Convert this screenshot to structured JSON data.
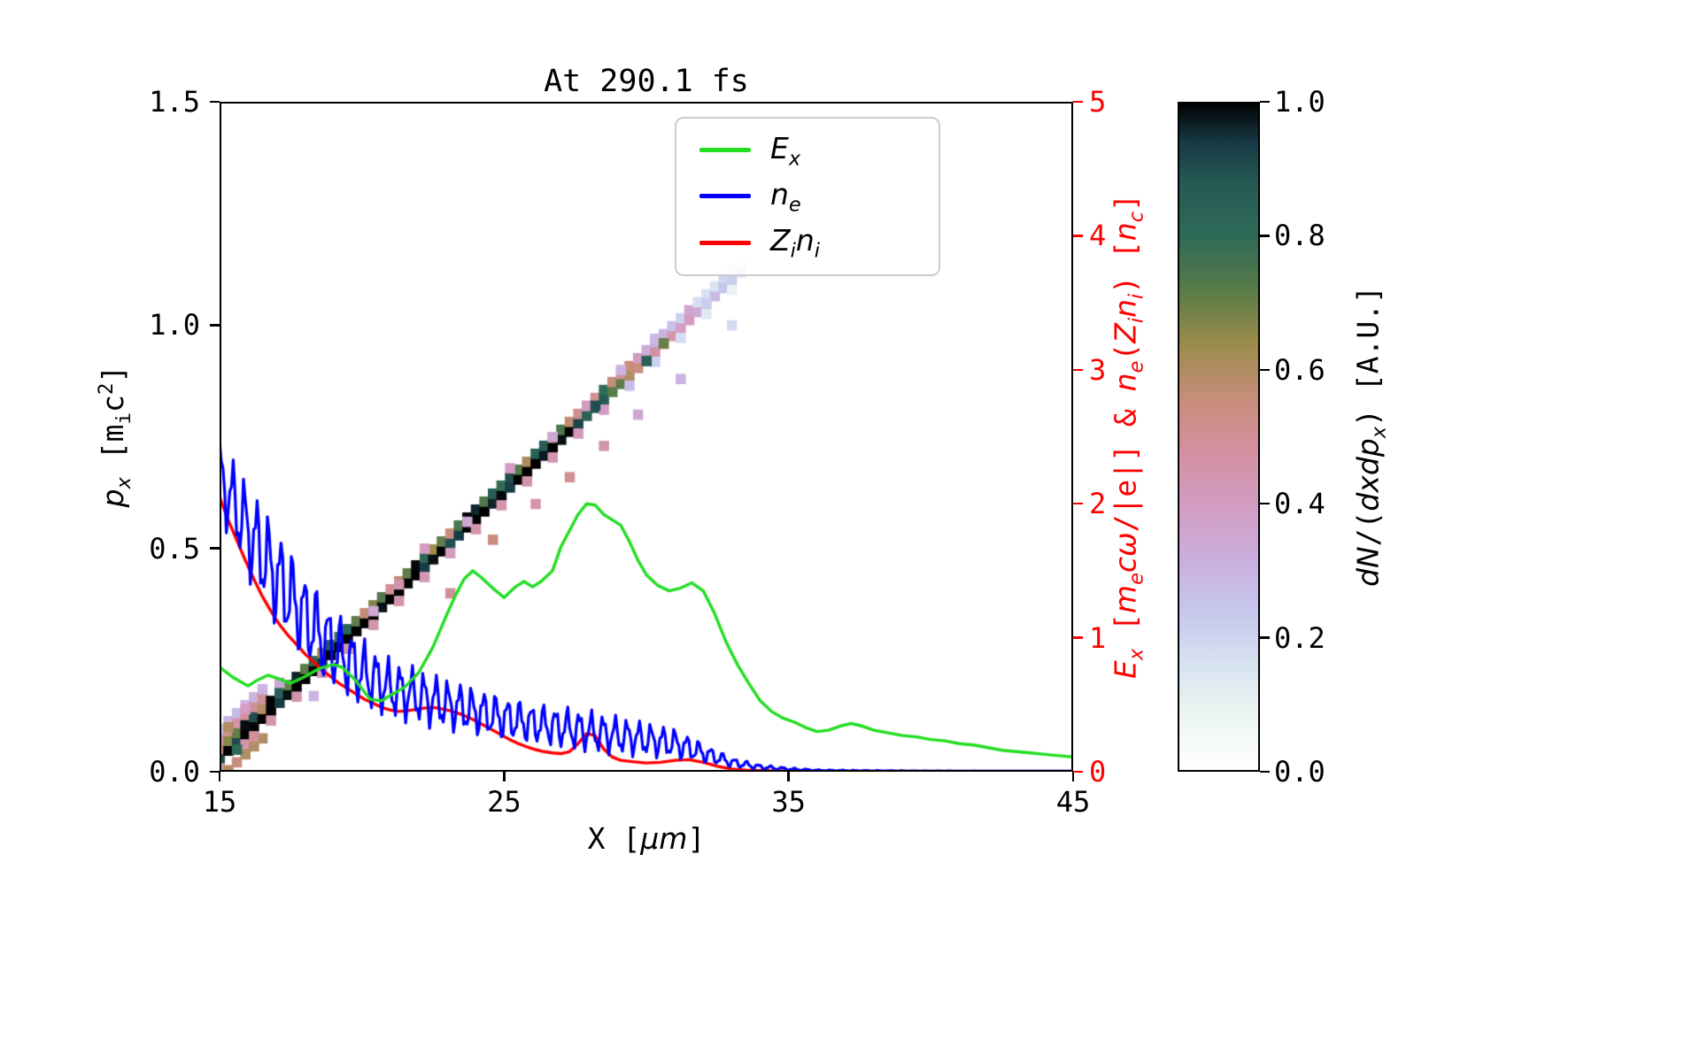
{
  "figure": {
    "title": "At 290.1 fs",
    "background": "#ffffff"
  },
  "axes": {
    "xlabel": "X [μm]",
    "ylabel_left": "p_x [m_i c²]",
    "ylabel_right": "E_x [m_e cω/|e|] & n_e(Z_i n_i) [n_c]",
    "colorbar_label": "dN/(dxdp_x) [A.U.]",
    "right_axis_color": "#ff0000",
    "xlabel_parts": [
      {
        "t": "X ["
      },
      {
        "t": "μm",
        "c": "it"
      },
      {
        "t": "]"
      }
    ],
    "ylabel_left_parts": [
      {
        "t": "p",
        "c": "it"
      },
      {
        "t": "x",
        "c": "it sub"
      },
      {
        "t": " [m"
      },
      {
        "t": "i",
        "c": "sub"
      },
      {
        "t": "c"
      },
      {
        "t": "2",
        "c": "sup"
      },
      {
        "t": "]"
      }
    ],
    "ylabel_right_parts": [
      {
        "t": "E",
        "c": "it"
      },
      {
        "t": "x",
        "c": "it sub"
      },
      {
        "t": " ["
      },
      {
        "t": "m",
        "c": "it"
      },
      {
        "t": "e",
        "c": "it sub"
      },
      {
        "t": "cω",
        "c": "it"
      },
      {
        "t": "/|e|] & "
      },
      {
        "t": "n",
        "c": "it"
      },
      {
        "t": "e",
        "c": "it sub"
      },
      {
        "t": "("
      },
      {
        "t": "Z",
        "c": "it"
      },
      {
        "t": "i",
        "c": "it sub"
      },
      {
        "t": "n",
        "c": "it"
      },
      {
        "t": "i",
        "c": "it sub"
      },
      {
        "t": ") ["
      },
      {
        "t": "n",
        "c": "it"
      },
      {
        "t": "c",
        "c": "it sub"
      },
      {
        "t": "]"
      }
    ],
    "colorbar_label_parts": [
      {
        "t": "dN",
        "c": "it"
      },
      {
        "t": "/("
      },
      {
        "t": "dxdp",
        "c": "it"
      },
      {
        "t": "x",
        "c": "it sub"
      },
      {
        "t": ") [A.U.]"
      }
    ]
  },
  "legend": {
    "items": [
      {
        "name": "Ex",
        "label": "E_x",
        "color": "#22dd22",
        "label_parts": [
          {
            "t": "E",
            "c": "it"
          },
          {
            "t": "x",
            "c": "it sub"
          }
        ]
      },
      {
        "name": "ne",
        "label": "n_e",
        "color": "#0000ff",
        "label_parts": [
          {
            "t": "n",
            "c": "it"
          },
          {
            "t": "e",
            "c": "it sub"
          }
        ]
      },
      {
        "name": "Zini",
        "label": "Z_i n_i",
        "color": "#ff0000",
        "label_parts": [
          {
            "t": "Z",
            "c": "it"
          },
          {
            "t": "i",
            "c": "it sub"
          },
          {
            "t": "n",
            "c": "it"
          },
          {
            "t": "i",
            "c": "it sub"
          }
        ]
      }
    ]
  },
  "chart_data": {
    "type": "heatmap+line",
    "title": "At 290.1 fs",
    "xlabel": "X [μm]",
    "ylabel_left": "p_x [m_i c²]",
    "ylabel_right": "E_x [m_e cω/|e|] & n_e(Z_i n_i) [n_c]",
    "x_range": [
      15,
      45
    ],
    "y_left_range": [
      0,
      1.5
    ],
    "y_right_range": [
      0,
      5
    ],
    "grid": false,
    "legend_position": "upper center",
    "right_axis_color": "#ff0000",
    "x_ticks": [
      {
        "v": 15,
        "t": "15"
      },
      {
        "v": 25,
        "t": "25"
      },
      {
        "v": 35,
        "t": "35"
      },
      {
        "v": 45,
        "t": "45"
      }
    ],
    "y_left_ticks": [
      {
        "v": 0,
        "t": "0.0"
      },
      {
        "v": 0.5,
        "t": "0.5"
      },
      {
        "v": 1.0,
        "t": "1.0"
      },
      {
        "v": 1.5,
        "t": "1.5"
      }
    ],
    "y_right_ticks": [
      {
        "v": 0,
        "t": "0"
      },
      {
        "v": 1,
        "t": "1"
      },
      {
        "v": 2,
        "t": "2"
      },
      {
        "v": 3,
        "t": "3"
      },
      {
        "v": 4,
        "t": "4"
      },
      {
        "v": 5,
        "t": "5"
      }
    ],
    "colorbar_range": [
      0,
      1
    ],
    "colorbar_ticks": [
      {
        "v": 0,
        "t": "0.0"
      },
      {
        "v": 0.2,
        "t": "0.2"
      },
      {
        "v": 0.4,
        "t": "0.4"
      },
      {
        "v": 0.6,
        "t": "0.6"
      },
      {
        "v": 0.8,
        "t": "0.8"
      },
      {
        "v": 1.0,
        "t": "1.0"
      }
    ],
    "colorbar_label": "dN/(dxdp_x) [A.U.]",
    "colormap_stops": [
      [
        0.0,
        "#ffffff"
      ],
      [
        0.08,
        "#eef7f1"
      ],
      [
        0.16,
        "#d8e3f2"
      ],
      [
        0.24,
        "#c6c7ec"
      ],
      [
        0.32,
        "#cbaedd"
      ],
      [
        0.4,
        "#d49cc2"
      ],
      [
        0.48,
        "#d391a0"
      ],
      [
        0.56,
        "#c68d79"
      ],
      [
        0.64,
        "#9b8c4a"
      ],
      [
        0.72,
        "#587b48"
      ],
      [
        0.8,
        "#2f6a58"
      ],
      [
        0.88,
        "#265a55"
      ],
      [
        0.94,
        "#173a45"
      ],
      [
        1.0,
        "#000000"
      ]
    ],
    "series": [
      {
        "name": "Ex",
        "label": "E_x",
        "color": "#22dd22",
        "axis": "right",
        "linewidth": 3.4,
        "x": [
          15,
          15.5,
          16,
          16.3,
          16.7,
          17,
          17.5,
          18,
          18.5,
          19,
          19.3,
          19.7,
          20,
          20.3,
          20.7,
          21,
          21.5,
          22,
          22.5,
          23,
          23.3,
          23.6,
          23.9,
          24.2,
          24.6,
          25,
          25.4,
          25.7,
          26,
          26.3,
          26.7,
          27,
          27.3,
          27.6,
          27.9,
          28.2,
          28.5,
          28.8,
          29.1,
          29.4,
          29.7,
          30,
          30.4,
          30.8,
          31.2,
          31.6,
          32,
          32.4,
          32.8,
          33.2,
          33.6,
          34,
          34.4,
          34.8,
          35.2,
          35.6,
          36,
          36.4,
          36.8,
          37.2,
          37.6,
          38,
          38.5,
          39,
          39.5,
          40,
          40.5,
          41,
          41.5,
          42,
          42.5,
          43,
          43.5,
          44,
          44.5,
          45
        ],
        "y": [
          0.78,
          0.7,
          0.64,
          0.68,
          0.72,
          0.7,
          0.66,
          0.71,
          0.77,
          0.8,
          0.78,
          0.7,
          0.62,
          0.54,
          0.53,
          0.57,
          0.63,
          0.74,
          0.93,
          1.18,
          1.32,
          1.44,
          1.5,
          1.45,
          1.37,
          1.3,
          1.38,
          1.42,
          1.38,
          1.42,
          1.5,
          1.68,
          1.8,
          1.92,
          2.0,
          1.99,
          1.92,
          1.88,
          1.84,
          1.72,
          1.58,
          1.47,
          1.39,
          1.35,
          1.37,
          1.41,
          1.35,
          1.18,
          0.97,
          0.8,
          0.66,
          0.53,
          0.45,
          0.4,
          0.37,
          0.33,
          0.3,
          0.31,
          0.34,
          0.36,
          0.34,
          0.31,
          0.29,
          0.27,
          0.26,
          0.24,
          0.23,
          0.21,
          0.2,
          0.18,
          0.16,
          0.15,
          0.14,
          0.13,
          0.12,
          0.11
        ]
      },
      {
        "name": "ne",
        "label": "n_e",
        "color": "#0000ff",
        "axis": "right",
        "linewidth": 3.2,
        "oscillation": {
          "x_start": 15,
          "x_end": 45,
          "step": 0.06,
          "wavelength": 0.42,
          "phase": 0.9,
          "wavelength2": 0.17,
          "amp2_ratio": 0.4,
          "phase2": 2.0,
          "center_envelope": [
            [
              15,
              2.2
            ],
            [
              16,
              1.8
            ],
            [
              17,
              1.45
            ],
            [
              18,
              1.15
            ],
            [
              19,
              0.92
            ],
            [
              20,
              0.74
            ],
            [
              21,
              0.62
            ],
            [
              22,
              0.56
            ],
            [
              23,
              0.5
            ],
            [
              24,
              0.45
            ],
            [
              25,
              0.4
            ],
            [
              26,
              0.36
            ],
            [
              27,
              0.33
            ],
            [
              28,
              0.3
            ],
            [
              29,
              0.27
            ],
            [
              30,
              0.24
            ],
            [
              31,
              0.21
            ],
            [
              32,
              0.14
            ],
            [
              33,
              0.07
            ],
            [
              34,
              0.035
            ],
            [
              35,
              0.02
            ],
            [
              36,
              0.01
            ],
            [
              38,
              0.006
            ],
            [
              40,
              0.004
            ],
            [
              42,
              0.003
            ],
            [
              45,
              0.002
            ]
          ],
          "amp_envelope": [
            [
              15,
              0.22
            ],
            [
              16,
              0.28
            ],
            [
              17,
              0.3
            ],
            [
              18,
              0.27
            ],
            [
              19,
              0.24
            ],
            [
              20,
              0.2
            ],
            [
              21,
              0.17
            ],
            [
              22,
              0.16
            ],
            [
              23,
              0.15
            ],
            [
              24,
              0.14
            ],
            [
              25,
              0.13
            ],
            [
              26,
              0.12
            ],
            [
              27,
              0.12
            ],
            [
              28,
              0.12
            ],
            [
              29,
              0.11
            ],
            [
              30,
              0.1
            ],
            [
              31,
              0.09
            ],
            [
              32,
              0.06
            ],
            [
              33,
              0.03
            ],
            [
              34,
              0.015
            ],
            [
              35,
              0.008
            ],
            [
              36,
              0.004
            ],
            [
              40,
              0.002
            ],
            [
              45,
              0.001
            ]
          ]
        }
      },
      {
        "name": "Zini",
        "label": "Z_i n_i",
        "color": "#ff0000",
        "axis": "right",
        "linewidth": 3.4,
        "x": [
          15,
          15.3,
          15.6,
          15.9,
          16.2,
          16.5,
          16.8,
          17.1,
          17.4,
          17.7,
          18,
          18.3,
          18.6,
          18.9,
          19.2,
          19.5,
          19.8,
          20.1,
          20.4,
          20.7,
          21,
          21.3,
          21.6,
          21.9,
          22.2,
          22.5,
          22.8,
          23.1,
          23.4,
          23.7,
          24,
          24.3,
          24.6,
          24.9,
          25.2,
          25.5,
          25.8,
          26.1,
          26.4,
          26.7,
          27,
          27.3,
          27.6,
          27.9,
          28.2,
          28.5,
          28.8,
          29.1,
          29.5,
          30,
          30.5,
          31,
          31.5,
          32,
          32.5,
          33,
          33.5,
          34,
          35,
          36,
          38,
          40,
          42,
          45
        ],
        "y": [
          2.05,
          1.88,
          1.73,
          1.58,
          1.44,
          1.31,
          1.2,
          1.1,
          1.02,
          0.95,
          0.88,
          0.82,
          0.76,
          0.71,
          0.66,
          0.62,
          0.58,
          0.54,
          0.51,
          0.48,
          0.46,
          0.45,
          0.455,
          0.465,
          0.475,
          0.48,
          0.47,
          0.455,
          0.435,
          0.41,
          0.38,
          0.345,
          0.31,
          0.275,
          0.24,
          0.21,
          0.185,
          0.165,
          0.15,
          0.14,
          0.135,
          0.15,
          0.21,
          0.285,
          0.27,
          0.17,
          0.11,
          0.085,
          0.075,
          0.065,
          0.07,
          0.085,
          0.09,
          0.07,
          0.04,
          0.02,
          0.012,
          0.008,
          0.005,
          0.004,
          0.003,
          0.002,
          0.002,
          0.001
        ]
      }
    ],
    "heatmap": {
      "quantity": "dN/(dxdp_x)",
      "axis": "left",
      "ridge": {
        "x_start": 15,
        "x_end": 33.4,
        "p_start": 0.03,
        "slope": 0.0595,
        "step": 0.3,
        "cell_w": 0.34,
        "cell_h": 0.022,
        "intensity_profile": [
          [
            15,
            1
          ],
          [
            24,
            1
          ],
          [
            26,
            0.97
          ],
          [
            27.5,
            0.92
          ],
          [
            28.5,
            0.8
          ],
          [
            29.5,
            0.62
          ],
          [
            30.5,
            0.48
          ],
          [
            31.5,
            0.36
          ],
          [
            32.5,
            0.28
          ],
          [
            33.4,
            0.2
          ]
        ]
      },
      "specks": [
        [
          15.3,
          0.1,
          0.6
        ],
        [
          15.6,
          0.05,
          0.8
        ],
        [
          15.9,
          0.14,
          0.4
        ],
        [
          16.2,
          0.08,
          0.5
        ],
        [
          17.1,
          0.2,
          0.35
        ],
        [
          18.3,
          0.17,
          0.3
        ],
        [
          20.4,
          0.36,
          0.35
        ],
        [
          21.3,
          0.42,
          0.45
        ],
        [
          22.2,
          0.5,
          0.4
        ],
        [
          23.1,
          0.4,
          0.5
        ],
        [
          23.7,
          0.56,
          0.35
        ],
        [
          24.6,
          0.52,
          0.55
        ],
        [
          25.2,
          0.68,
          0.4
        ],
        [
          26.1,
          0.6,
          0.45
        ],
        [
          26.7,
          0.75,
          0.35
        ],
        [
          27.3,
          0.66,
          0.5
        ],
        [
          27.9,
          0.82,
          0.4
        ],
        [
          28.2,
          0.82,
          0.9
        ],
        [
          28.5,
          0.73,
          0.45
        ],
        [
          29.1,
          0.9,
          0.3
        ],
        [
          29.7,
          0.8,
          0.35
        ],
        [
          30.0,
          0.92,
          0.85
        ],
        [
          30.3,
          0.97,
          0.28
        ],
        [
          30.6,
          0.96,
          0.7
        ],
        [
          31.2,
          0.88,
          0.3
        ],
        [
          32.1,
          1.05,
          0.22
        ],
        [
          33.0,
          1.0,
          0.18
        ]
      ]
    }
  }
}
